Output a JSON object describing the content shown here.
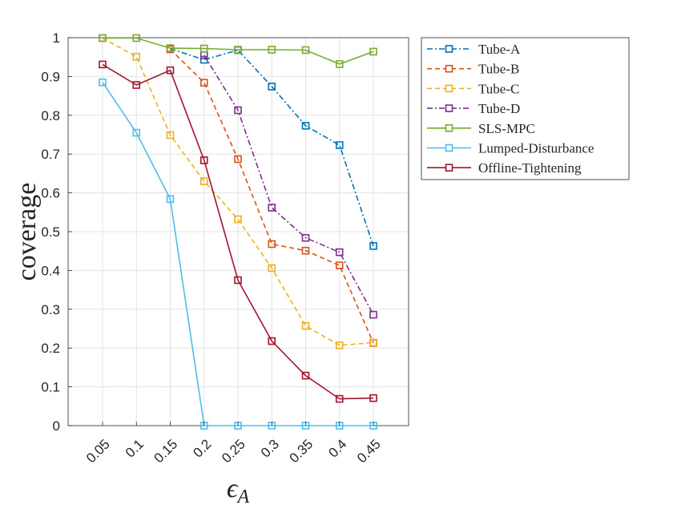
{
  "chart_data": {
    "type": "line",
    "title": "",
    "xlabel_main": "ϵ",
    "xlabel_sub": "A",
    "ylabel": "coverage",
    "x": [
      "0.05",
      "0.1",
      "0.15",
      "0.2",
      "0.25",
      "0.3",
      "0.35",
      "0.4",
      "0.45"
    ],
    "ylim": [
      0,
      1
    ],
    "yticks": [
      "0",
      "0.1",
      "0.2",
      "0.3",
      "0.4",
      "0.5",
      "0.6",
      "0.7",
      "0.8",
      "0.9",
      "1"
    ],
    "grid": true,
    "legend_position": "outside-top-right",
    "series": [
      {
        "name": "Tube-A",
        "color": "#0072BD",
        "dash": "dash-dot",
        "values": [
          null,
          null,
          0.972,
          0.943,
          0.968,
          0.874,
          0.773,
          0.723,
          0.463
        ]
      },
      {
        "name": "Tube-B",
        "color": "#D95319",
        "dash": "dashed",
        "values": [
          null,
          null,
          0.97,
          0.884,
          0.687,
          0.468,
          0.451,
          0.413,
          0.213
        ]
      },
      {
        "name": "Tube-C",
        "color": "#EDB120",
        "dash": "dashed",
        "values": [
          0.999,
          0.951,
          0.749,
          0.63,
          0.532,
          0.406,
          0.257,
          0.207,
          0.214
        ]
      },
      {
        "name": "Tube-D",
        "color": "#7E2F8E",
        "dash": "dash-dot",
        "values": [
          null,
          null,
          null,
          0.955,
          0.813,
          0.562,
          0.484,
          0.447,
          0.286
        ]
      },
      {
        "name": "SLS-MPC",
        "color": "#77AC30",
        "dash": "solid",
        "values": [
          0.999,
          0.999,
          0.973,
          0.972,
          0.969,
          0.969,
          0.968,
          0.932,
          0.964
        ]
      },
      {
        "name": "Lumped-Disturbance",
        "color": "#4DBEEE",
        "dash": "solid",
        "values": [
          0.885,
          0.755,
          0.584,
          0.0,
          0.0,
          0.0,
          0.0,
          0.0,
          0.0
        ]
      },
      {
        "name": "Offline-Tightening",
        "color": "#A2142F",
        "dash": "solid",
        "values": [
          0.931,
          0.878,
          0.916,
          0.684,
          0.375,
          0.218,
          0.129,
          0.069,
          0.071
        ]
      }
    ]
  }
}
